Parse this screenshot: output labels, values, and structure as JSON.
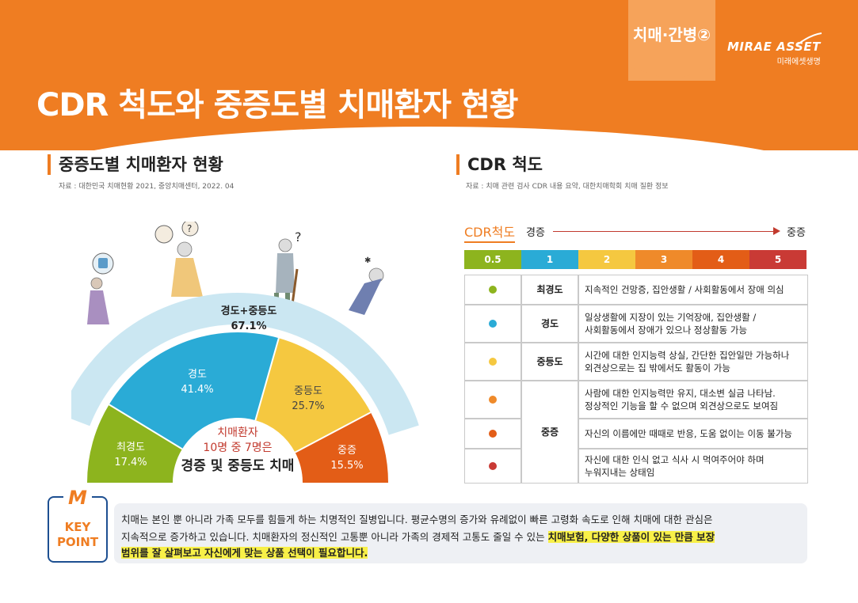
{
  "header": {
    "title": "CDR 척도와 중증도별 치매환자 현황",
    "tab_label": "치매·간병②",
    "logo_main": "MIRAE ASSET",
    "logo_sub": "미래에셋생명"
  },
  "left": {
    "title": "중증도별 치매환자 현황",
    "source": "자료 : 대한민국 치매현황 2021, 중앙치매센터, 2022. 04"
  },
  "chart_data": {
    "type": "pie",
    "categories": [
      "최경도",
      "경도",
      "중등도",
      "중증"
    ],
    "values": [
      17.4,
      41.4,
      25.7,
      15.5
    ],
    "value_labels": [
      "17.4%",
      "41.4%",
      "25.7%",
      "15.5%"
    ],
    "combined_label": "경도+중등도",
    "combined_value": "67.1%",
    "colors": [
      "#8db41e",
      "#2aabd6",
      "#f5c840",
      "#e35d17"
    ],
    "arc_color": "#cbe7f2",
    "center_line1": "치매환자",
    "center_line2": "10명 중 7명은",
    "center_line3": "경증 및 중등도 치매",
    "center_color": "#c23a2e"
  },
  "right": {
    "title": "CDR 척도",
    "source": "자료 : 치매 관련 검사 CDR 내용 요약, 대한치매학회 치매 질환 정보",
    "scale_label": "CDR척도",
    "scale_mild": "경증",
    "scale_severe": "중증",
    "grades": [
      {
        "label": "0.5",
        "color": "#8db41e"
      },
      {
        "label": "1",
        "color": "#2aabd6"
      },
      {
        "label": "2",
        "color": "#f5c840"
      },
      {
        "label": "3",
        "color": "#ef8a2a"
      },
      {
        "label": "4",
        "color": "#e35d17"
      },
      {
        "label": "5",
        "color": "#c93a35"
      }
    ],
    "rows": [
      {
        "dot": "#8db41e",
        "name": "최경도",
        "desc1": "지속적인 건망증, 집안생활 / 사회활동에서 장애 의심",
        "desc2": ""
      },
      {
        "dot": "#2aabd6",
        "name": "경도",
        "desc1": "일상생활에 지장이 있는 기억장애, 집안생활 /",
        "desc2": "사회활동에서 장애가 있으나 정상활동 가능"
      },
      {
        "dot": "#f5c840",
        "name": "중등도",
        "desc1": "시간에 대한 인지능력 상실, 간단한 집안일만 가능하나",
        "desc2": "외견상으로는 집 밖에서도 활동이 가능"
      },
      {
        "dot": "#ef8a2a",
        "name": "중증",
        "desc1": "사람에 대한 인지능력만 유지, 대소변 실금 나타남.",
        "desc2": "정상적인 기능을 할 수 없으며 외견상으로도 보여짐"
      },
      {
        "dot": "#e35d17",
        "name": "",
        "desc1": "자신의 이름에만 때때로 반응, 도움 없이는 이동 불가능",
        "desc2": ""
      },
      {
        "dot": "#c93a35",
        "name": "",
        "desc1": "자신에 대한 인식 없고 식사 시 먹여주어야 하며",
        "desc2": "누워지내는 상태임"
      }
    ]
  },
  "key_point": {
    "badge_m": "M",
    "badge_text1": "KEY",
    "badge_text2": "POINT",
    "line1": "치매는 본인 뿐 아니라 가족 모두를 힘들게 하는 치명적인 질병입니다. 평균수명의 증가와 유례없이 빠른 고령화 속도로 인해 치매에 대한 관심은",
    "line2_plain": "지속적으로 증가하고 있습니다. 치매환자의 정신적인 고통뿐 아니라 가족의 경제적 고통도 줄일 수 있는 ",
    "line2_highlight": "치매보험, 다양한 상품이 있는 만큼 보장",
    "line3_highlight": "범위를 잘 살펴보고 자신에게 맞는 상품 선택이 필요합니다."
  }
}
